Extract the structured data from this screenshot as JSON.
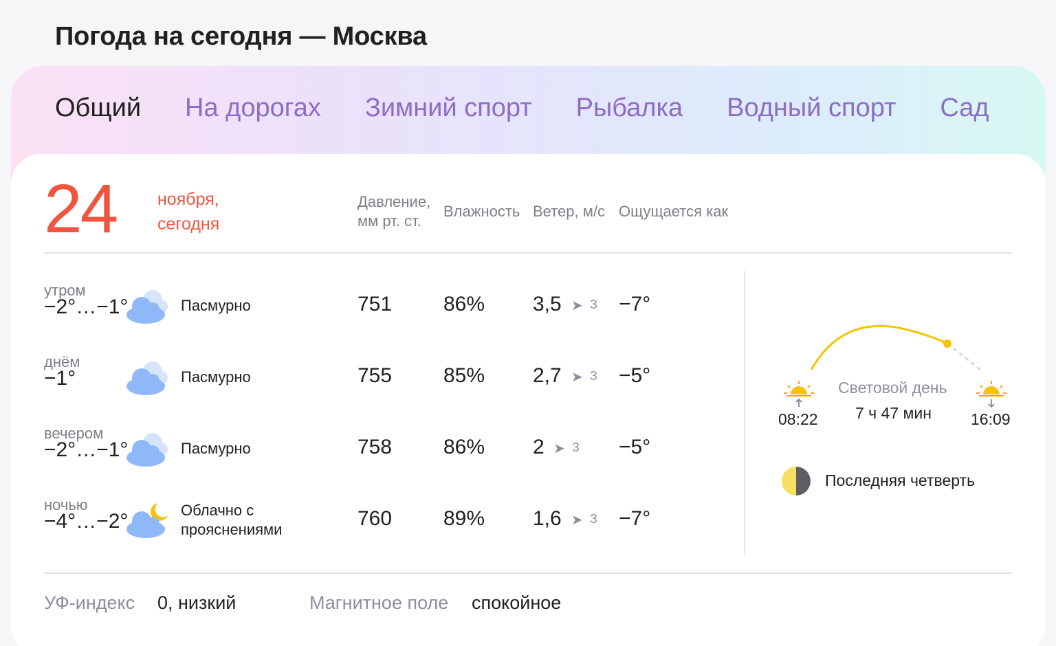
{
  "page": {
    "title": "Погода на сегодня — Москва"
  },
  "tabs": [
    {
      "label": "Общий",
      "active": true
    },
    {
      "label": "На дорогах",
      "active": false
    },
    {
      "label": "Зимний спорт",
      "active": false
    },
    {
      "label": "Рыбалка",
      "active": false
    },
    {
      "label": "Водный спорт",
      "active": false
    },
    {
      "label": "Сад",
      "active": false
    }
  ],
  "date": {
    "day": "24",
    "month": "ноября,",
    "relative": "сегодня"
  },
  "columns": {
    "pressure": [
      "Давление,",
      "мм рт. ст."
    ],
    "humidity": "Влажность",
    "wind": "Ветер, м/с",
    "feels_like": "Ощущается как"
  },
  "rows": [
    {
      "part": "утром",
      "temp": "−2°…−1°",
      "condition": "Пасмурно",
      "icon": "overcast-cloud-icon",
      "pressure": "751",
      "humidity": "86%",
      "wind_speed": "3,5",
      "wind_dir": "З",
      "feels": "−7°"
    },
    {
      "part": "днём",
      "temp": "−1°",
      "condition": "Пасмурно",
      "icon": "overcast-cloud-icon",
      "pressure": "755",
      "humidity": "85%",
      "wind_speed": "2,7",
      "wind_dir": "З",
      "feels": "−5°"
    },
    {
      "part": "вечером",
      "temp": "−2°…−1°",
      "condition": "Пасмурно",
      "icon": "overcast-cloud-icon",
      "pressure": "758",
      "humidity": "86%",
      "wind_speed": "2",
      "wind_dir": "З",
      "feels": "−5°"
    },
    {
      "part": "ночью",
      "temp": "−4°…−2°",
      "condition_lines": [
        "Облачно с",
        "прояснениями"
      ],
      "icon": "cloud-moon-icon",
      "pressure": "760",
      "humidity": "89%",
      "wind_speed": "1,6",
      "wind_dir": "З",
      "feels": "−7°"
    }
  ],
  "sun": {
    "label": "Световой день",
    "duration": "7 ч 47 мин",
    "sunrise": "08:22",
    "sunset": "16:09"
  },
  "moon": {
    "phase": "Последняя четверть"
  },
  "footer": {
    "uv_label": "УФ-индекс",
    "uv_value": "0, низкий",
    "magnetic_label": "Магнитное поле",
    "magnetic_value": "спокойное"
  },
  "colors": {
    "accent_red": "#f2553f",
    "tab_purple": "#8e6cc4",
    "cloud_blue": "#8fb8f8",
    "sun_yellow": "#f5c40a"
  }
}
